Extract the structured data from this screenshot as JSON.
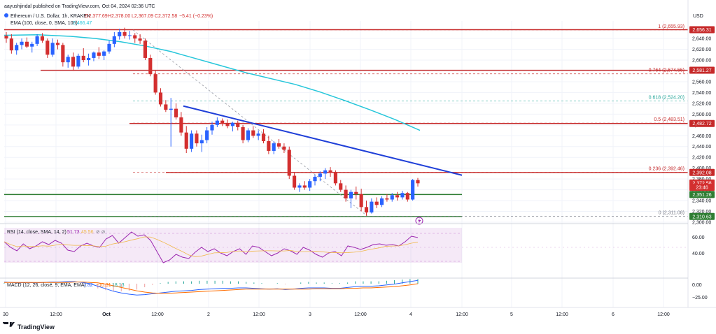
{
  "header": {
    "published": "aayushjindal published on TradingView.com, Oct 04, 2024 02:36 UTC",
    "symbol": "Ethereum / U.S. Dollar, 1h, KRAKEN",
    "open": "O2,377.69",
    "high": "H2,378.00",
    "low": "L2,367.09",
    "close": "C2,372.58",
    "change": "−5.41 (−0.23%)",
    "ema_label": "EMA (100, close, 0, SMA, 100)",
    "ema_value": "2,466.47"
  },
  "footer": {
    "brand": "TradingView"
  },
  "colors": {
    "up": "#2962ff",
    "down": "#d32f2f",
    "ema": "#26c6da",
    "trend": "#1f3fd8",
    "fib_red": "#c62828",
    "fib_teal": "#26a69a",
    "support_green": "#2e7d32",
    "rsi_line": "#9c27b0",
    "rsi_ma": "#f0b84a",
    "macd": "#2962ff",
    "signal": "#ff6d00",
    "hist_pos": "#26a69a",
    "hist_neg": "#ef9a9a"
  },
  "price_axis": {
    "currency": "USD",
    "ticks": [
      "2,640.00",
      "2,620.00",
      "2,600.00",
      "2,580.00",
      "2,560.00",
      "2,540.00",
      "2,520.00",
      "2,500.00",
      "2,480.00",
      "2,460.00",
      "2,440.00",
      "2,420.00",
      "2,400.00",
      "2,380.00",
      "2,360.00",
      "2,340.00",
      "2,320.00",
      "2,300.00"
    ],
    "badges": [
      {
        "label": "2,656.31",
        "value": 2656.31,
        "color": "#c62828"
      },
      {
        "label": "2,581.27",
        "value": 2581.27,
        "color": "#c62828"
      },
      {
        "label": "2,482.72",
        "value": 2482.72,
        "color": "#c62828"
      },
      {
        "label": "2,392.08",
        "value": 2392.08,
        "color": "#c62828"
      },
      {
        "label": "2,372.58",
        "value": 2372.58,
        "color": "#d32f2f"
      },
      {
        "label": "23:46",
        "value": 2364.5,
        "color": "#d32f2f"
      },
      {
        "label": "2,351.26",
        "value": 2351.26,
        "color": "#2e7d32"
      },
      {
        "label": "2,310.63",
        "value": 2310.63,
        "color": "#2e7d32"
      }
    ]
  },
  "fib_levels": [
    {
      "label": "1 (2,655.93)",
      "value": 2655.93
    },
    {
      "label": "0.764 (2,574.55)",
      "value": 2574.55
    },
    {
      "label": "0.618 (2,524.20)",
      "value": 2524.2
    },
    {
      "label": "0.5 (2,483.51)",
      "value": 2483.51
    },
    {
      "label": "0.236 (2,392.46)",
      "value": 2392.46
    },
    {
      "label": "0 (2,311.08)",
      "value": 2311.08
    }
  ],
  "horizontal_lines": [
    {
      "value": 2656.31,
      "color": "#c62828"
    },
    {
      "value": 2581.27,
      "color": "#c62828"
    },
    {
      "value": 2482.72,
      "color": "#c62828"
    },
    {
      "value": 2392.08,
      "color": "#c62828"
    },
    {
      "value": 2351.26,
      "color": "#2e7d32"
    },
    {
      "value": 2310.63,
      "color": "#2e7d32"
    }
  ],
  "time_axis": {
    "labels": [
      "30",
      "12:00",
      "Oct",
      "12:00",
      "2",
      "12:00",
      "3",
      "12:00",
      "4",
      "12:00",
      "5",
      "12:00",
      "6",
      "12:00"
    ],
    "bold_labels": [
      "Oct"
    ]
  },
  "rsi": {
    "label": "RSI (14, close, SMA, 14, 2)",
    "value": "51.73",
    "ma_value": "45.56",
    "ticks": [
      "60.00",
      "40.00"
    ],
    "levels": [
      70,
      30
    ]
  },
  "macd": {
    "label": "MACD (12, 26, close, 9, EMA, EMA)",
    "macd_value": "7.82",
    "signal_value": "−10.31",
    "hist_value": "18.13",
    "ticks": [
      "0.00",
      "−25.00"
    ]
  },
  "chart_data": {
    "type": "candlestick",
    "title": "Ethereum / U.S. Dollar, 1h, KRAKEN",
    "ylim": [
      2300,
      2666
    ],
    "candles": [
      [
        2645,
        2652,
        2632,
        2640
      ],
      [
        2640,
        2648,
        2612,
        2618
      ],
      [
        2618,
        2632,
        2610,
        2628
      ],
      [
        2628,
        2640,
        2620,
        2634
      ],
      [
        2634,
        2642,
        2622,
        2625
      ],
      [
        2625,
        2634,
        2614,
        2630
      ],
      [
        2630,
        2648,
        2626,
        2644
      ],
      [
        2644,
        2650,
        2632,
        2636
      ],
      [
        2636,
        2640,
        2604,
        2610
      ],
      [
        2610,
        2640,
        2606,
        2632
      ],
      [
        2632,
        2638,
        2620,
        2628
      ],
      [
        2628,
        2632,
        2588,
        2596
      ],
      [
        2596,
        2610,
        2586,
        2606
      ],
      [
        2606,
        2614,
        2580,
        2588
      ],
      [
        2588,
        2612,
        2584,
        2608
      ],
      [
        2608,
        2622,
        2596,
        2600
      ],
      [
        2600,
        2612,
        2590,
        2604
      ],
      [
        2604,
        2616,
        2598,
        2614
      ],
      [
        2614,
        2624,
        2602,
        2608
      ],
      [
        2608,
        2618,
        2600,
        2616
      ],
      [
        2616,
        2636,
        2612,
        2630
      ],
      [
        2630,
        2652,
        2624,
        2644
      ],
      [
        2644,
        2658,
        2638,
        2652
      ],
      [
        2652,
        2660,
        2640,
        2645
      ],
      [
        2645,
        2654,
        2638,
        2646
      ],
      [
        2646,
        2650,
        2632,
        2640
      ],
      [
        2640,
        2648,
        2630,
        2636
      ],
      [
        2636,
        2640,
        2600,
        2604
      ],
      [
        2604,
        2610,
        2570,
        2574
      ],
      [
        2574,
        2580,
        2536,
        2540
      ],
      [
        2540,
        2548,
        2514,
        2518
      ],
      [
        2518,
        2526,
        2504,
        2508
      ],
      [
        2508,
        2530,
        2440,
        2510
      ],
      [
        2510,
        2520,
        2490,
        2494
      ],
      [
        2494,
        2504,
        2460,
        2466
      ],
      [
        2466,
        2478,
        2428,
        2436
      ],
      [
        2436,
        2470,
        2430,
        2464
      ],
      [
        2464,
        2470,
        2440,
        2446
      ],
      [
        2446,
        2462,
        2430,
        2452
      ],
      [
        2452,
        2476,
        2446,
        2470
      ],
      [
        2470,
        2486,
        2462,
        2480
      ],
      [
        2480,
        2494,
        2476,
        2488
      ],
      [
        2488,
        2492,
        2478,
        2482
      ],
      [
        2482,
        2490,
        2474,
        2478
      ],
      [
        2478,
        2486,
        2468,
        2484
      ],
      [
        2484,
        2488,
        2470,
        2476
      ],
      [
        2476,
        2480,
        2446,
        2452
      ],
      [
        2452,
        2474,
        2448,
        2470
      ],
      [
        2470,
        2478,
        2456,
        2460
      ],
      [
        2460,
        2470,
        2452,
        2464
      ],
      [
        2464,
        2472,
        2446,
        2450
      ],
      [
        2450,
        2460,
        2426,
        2432
      ],
      [
        2432,
        2450,
        2426,
        2446
      ],
      [
        2446,
        2454,
        2436,
        2440
      ],
      [
        2440,
        2446,
        2428,
        2434
      ],
      [
        2434,
        2440,
        2380,
        2386
      ],
      [
        2386,
        2392,
        2360,
        2364
      ],
      [
        2364,
        2372,
        2356,
        2368
      ],
      [
        2368,
        2376,
        2360,
        2364
      ],
      [
        2364,
        2380,
        2358,
        2376
      ],
      [
        2376,
        2388,
        2368,
        2384
      ],
      [
        2384,
        2394,
        2376,
        2390
      ],
      [
        2390,
        2400,
        2380,
        2396
      ],
      [
        2396,
        2402,
        2384,
        2392
      ],
      [
        2392,
        2396,
        2368,
        2372
      ],
      [
        2372,
        2378,
        2356,
        2360
      ],
      [
        2360,
        2368,
        2338,
        2344
      ],
      [
        2344,
        2360,
        2326,
        2356
      ],
      [
        2356,
        2366,
        2342,
        2352
      ],
      [
        2352,
        2362,
        2320,
        2328
      ],
      [
        2328,
        2340,
        2312,
        2318
      ],
      [
        2318,
        2344,
        2316,
        2338
      ],
      [
        2338,
        2346,
        2326,
        2332
      ],
      [
        2332,
        2348,
        2328,
        2344
      ],
      [
        2344,
        2352,
        2338,
        2342
      ],
      [
        2342,
        2354,
        2338,
        2350
      ],
      [
        2350,
        2356,
        2340,
        2346
      ],
      [
        2346,
        2358,
        2342,
        2354
      ],
      [
        2354,
        2356,
        2338,
        2342
      ],
      [
        2342,
        2380,
        2340,
        2378
      ],
      [
        2378,
        2382,
        2366,
        2372
      ]
    ],
    "series": [
      {
        "name": "EMA (100, close, 0, SMA, 100)",
        "values": [
          [
            0,
            2646
          ],
          [
            0.08,
            2647
          ],
          [
            0.16,
            2644
          ],
          [
            0.22,
            2640
          ],
          [
            0.28,
            2634
          ],
          [
            0.34,
            2626
          ],
          [
            0.4,
            2616
          ],
          [
            0.46,
            2603
          ],
          [
            0.52,
            2590
          ],
          [
            0.58,
            2577
          ],
          [
            0.64,
            2566
          ],
          [
            0.7,
            2555
          ],
          [
            0.76,
            2541
          ],
          [
            0.82,
            2525
          ],
          [
            0.88,
            2508
          ],
          [
            0.94,
            2490
          ],
          [
            1.0,
            2470
          ]
        ]
      },
      {
        "name": "RSI",
        "values": [
          58,
          50,
          45,
          55,
          48,
          52,
          58,
          54,
          60,
          56,
          46,
          44,
          52,
          56,
          52,
          50,
          62,
          67,
          56,
          64,
          72,
          66,
          68,
          60,
          44,
          28,
          32,
          40,
          36,
          34,
          43,
          50,
          44,
          48,
          42,
          38,
          44,
          48,
          40,
          52,
          50,
          44,
          38,
          42,
          48,
          45,
          40,
          50,
          46,
          40,
          36,
          42,
          44,
          38,
          52,
          50,
          47,
          50,
          54,
          55,
          53,
          54,
          52,
          58,
          66,
          64
        ]
      },
      {
        "name": "MACD",
        "values": [
          4,
          3,
          2,
          3,
          2,
          3,
          4,
          4,
          5,
          5,
          3,
          0,
          -6,
          -12,
          -18,
          -22,
          -25,
          -27,
          -26,
          -24,
          -22,
          -20,
          -18,
          -17,
          -16,
          -14,
          -13,
          -12,
          -11,
          -11,
          -10,
          -10,
          -11,
          -12,
          -13,
          -12,
          -14,
          -13,
          -11,
          -10,
          -10,
          -10,
          -11,
          -11,
          -9,
          -7,
          -6,
          -6,
          -5,
          -3,
          -1,
          2,
          5,
          8
        ]
      },
      {
        "name": "Signal",
        "values": [
          3,
          3,
          3,
          3,
          3,
          3,
          3,
          3,
          3,
          4,
          4,
          3,
          2,
          -1,
          -5,
          -9,
          -13,
          -17,
          -20,
          -22,
          -23,
          -23,
          -22,
          -21,
          -20,
          -19,
          -18,
          -17,
          -16,
          -15,
          -14,
          -13,
          -13,
          -13,
          -13,
          -13,
          -13,
          -13,
          -13,
          -13,
          -12,
          -12,
          -12,
          -12,
          -11,
          -11,
          -10,
          -10,
          -9,
          -8,
          -7,
          -5,
          -3,
          0
        ]
      }
    ],
    "annotations": [
      "Descending trend line",
      "Fibonacci retracement 2,655.93 → 2,311.08"
    ]
  }
}
